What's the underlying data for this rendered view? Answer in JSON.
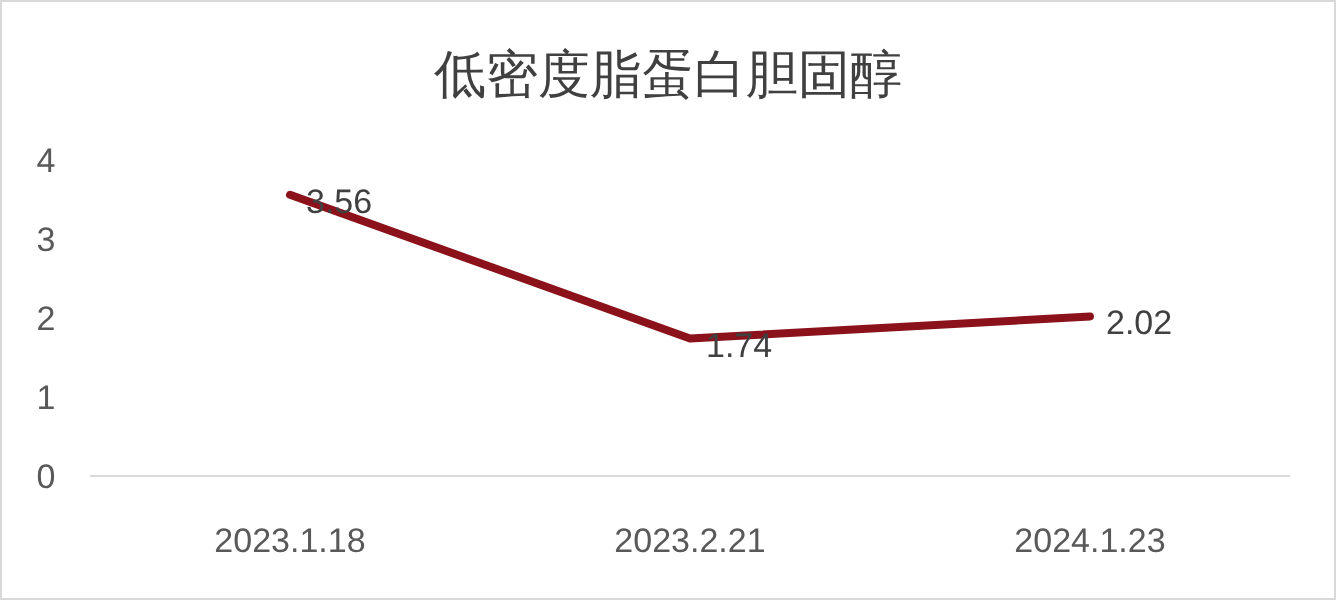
{
  "chart_data": {
    "type": "line",
    "title": "低密度脂蛋白胆固醇",
    "categories": [
      "2023.1.18",
      "2023.2.21",
      "2024.1.23"
    ],
    "values": [
      3.56,
      1.74,
      2.02
    ],
    "color": "#8b111b",
    "ylim": [
      0,
      4
    ],
    "yticks": [
      0,
      1,
      2,
      3,
      4
    ],
    "data_labels": true,
    "grid": false
  }
}
